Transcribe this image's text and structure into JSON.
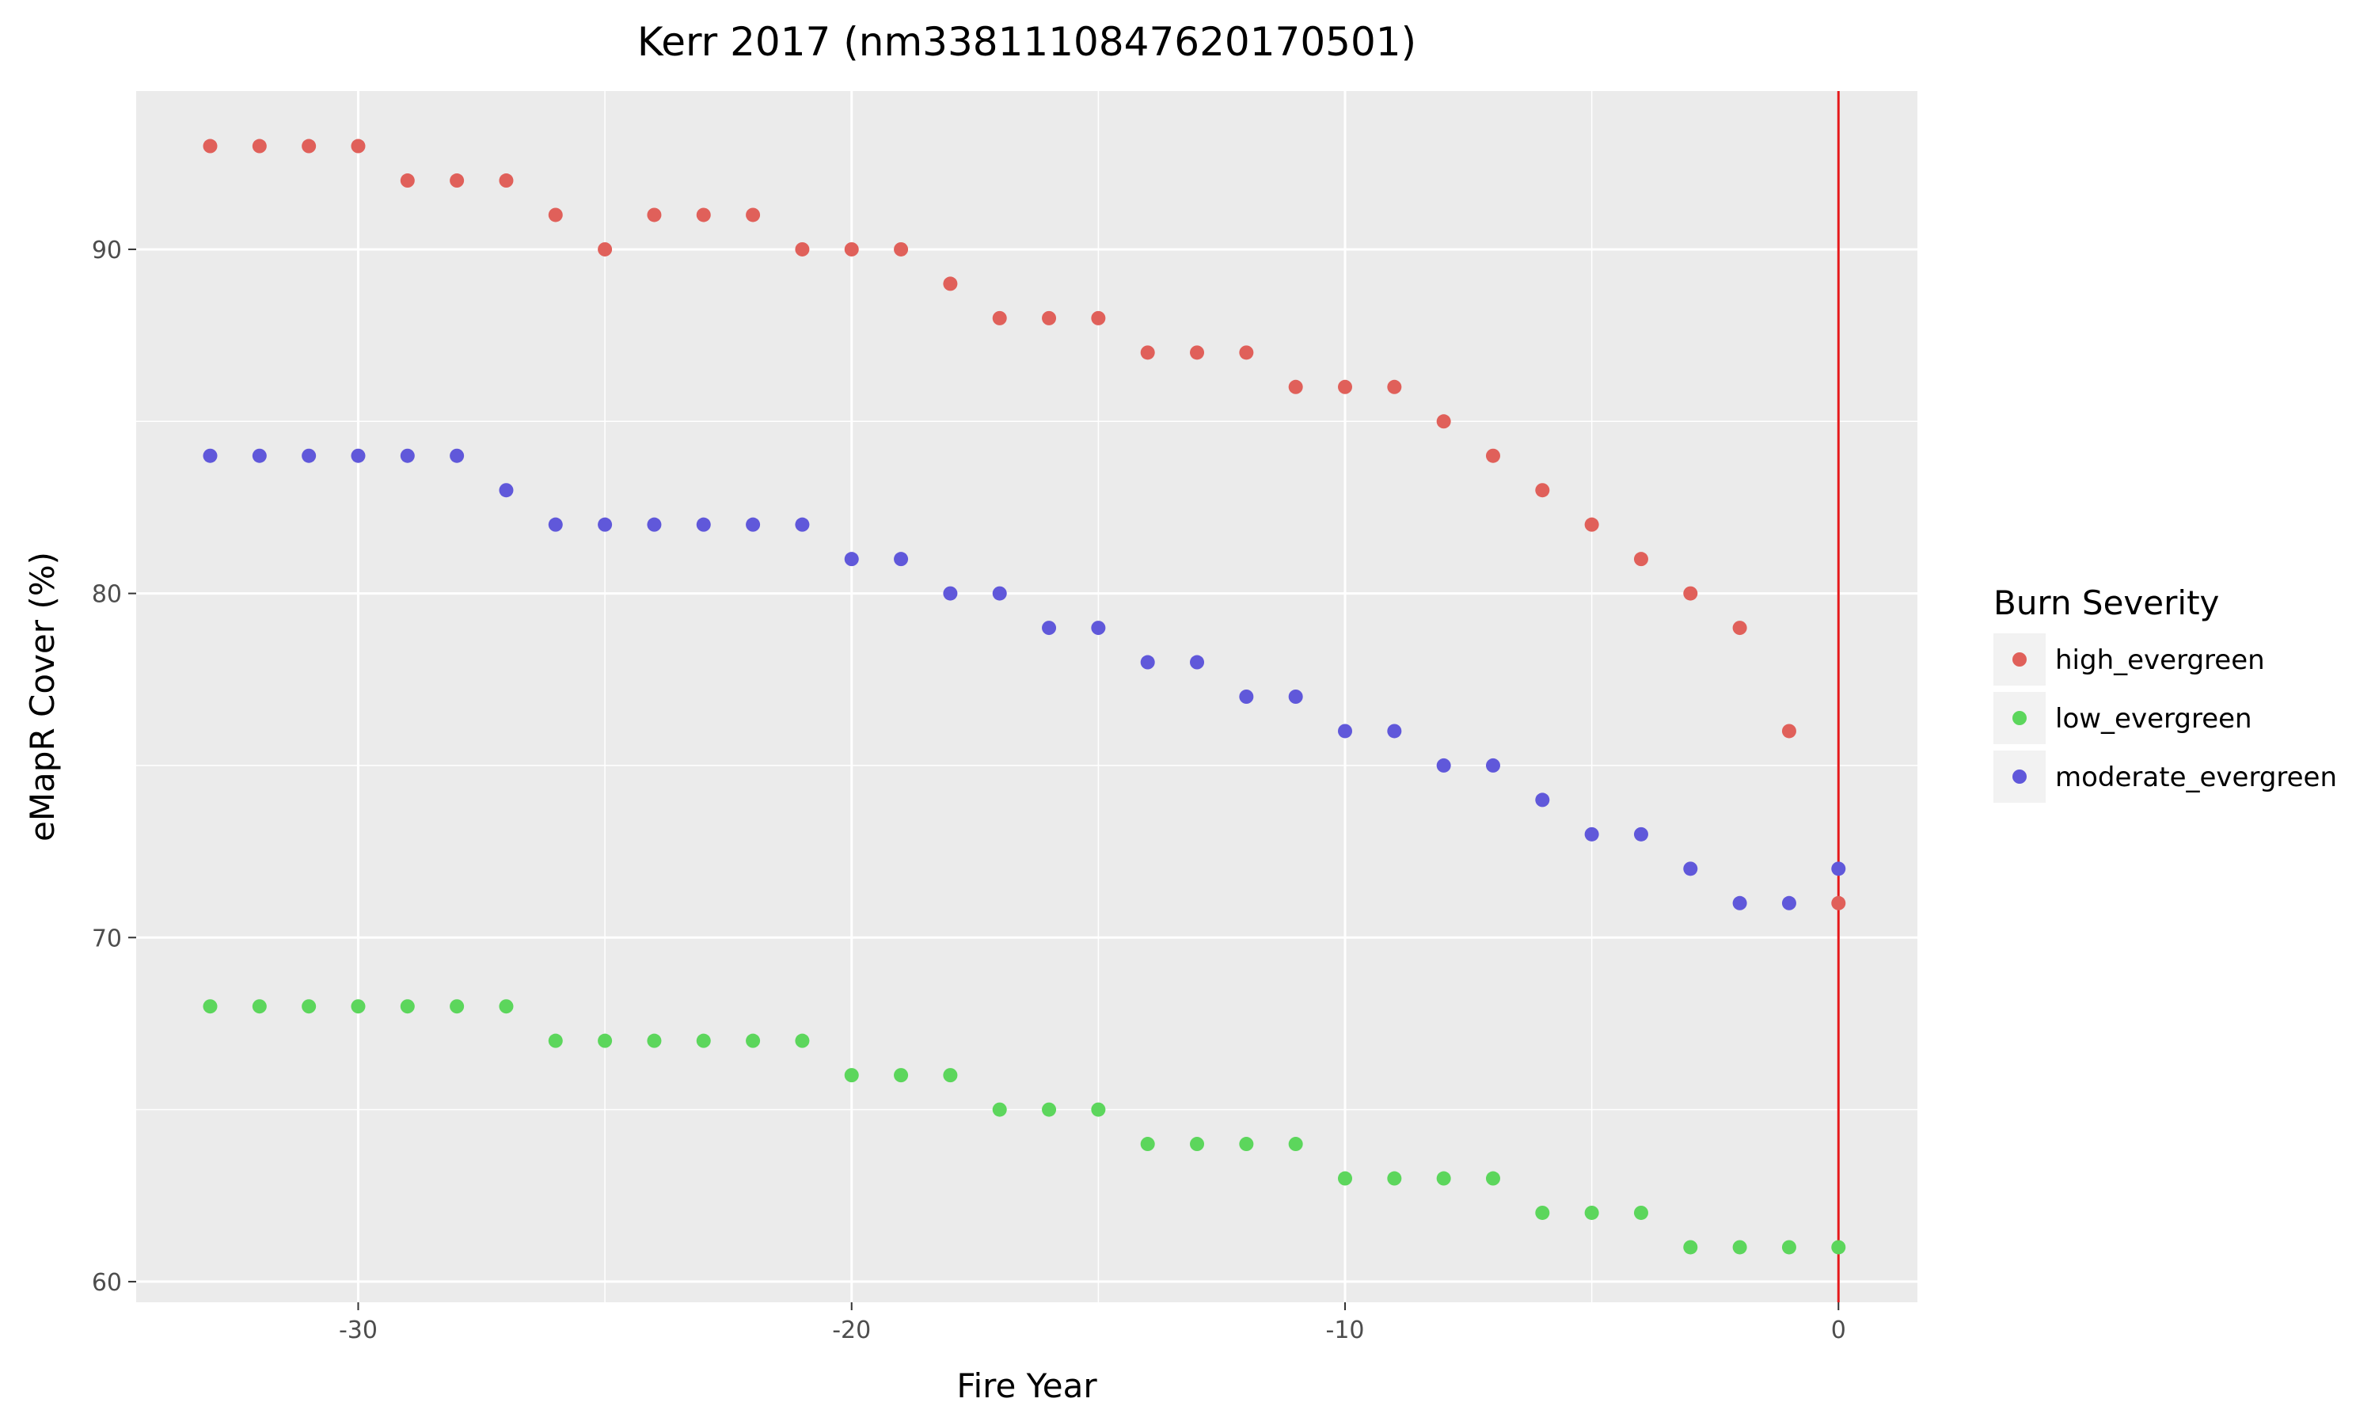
{
  "chart_data": {
    "type": "scatter",
    "title": "Kerr 2017 (nm3381110847620170501)",
    "xlabel": "Fire Year",
    "ylabel": "eMapR Cover (%)",
    "xlim": [
      -34.5,
      1.6
    ],
    "ylim": [
      59.4,
      94.6
    ],
    "x_ticks": [
      -30,
      -20,
      -10,
      0
    ],
    "y_ticks": [
      60,
      70,
      80,
      90
    ],
    "x_tick_labels": [
      "-30",
      "-20",
      "-10",
      "0"
    ],
    "y_tick_labels": [
      "60",
      "70",
      "80",
      "90"
    ],
    "grid": true,
    "background": "#ebebeb",
    "legend": {
      "title": "Burn Severity",
      "position": "right"
    },
    "reference_line": {
      "x": 0,
      "color": "#e41a1c"
    },
    "series": [
      {
        "name": "high_evergreen",
        "color": "#e0605a",
        "x": [
          -33,
          -32,
          -31,
          -30,
          -29,
          -28,
          -27,
          -26,
          -25,
          -24,
          -23,
          -22,
          -21,
          -20,
          -19,
          -18,
          -17,
          -16,
          -15,
          -14,
          -13,
          -12,
          -11,
          -10,
          -9,
          -8,
          -7,
          -6,
          -5,
          -4,
          -3,
          -2,
          -1,
          0
        ],
        "y": [
          93,
          93,
          93,
          93,
          92,
          92,
          92,
          91,
          90,
          91,
          91,
          91,
          90,
          90,
          90,
          89,
          88,
          88,
          88,
          87,
          87,
          87,
          86,
          86,
          86,
          85,
          84,
          83,
          82,
          81,
          80,
          79,
          76,
          71
        ]
      },
      {
        "name": "low_evergreen",
        "color": "#5cd65c",
        "x": [
          -33,
          -32,
          -31,
          -30,
          -29,
          -28,
          -27,
          -26,
          -25,
          -24,
          -23,
          -22,
          -21,
          -20,
          -19,
          -18,
          -17,
          -16,
          -15,
          -14,
          -13,
          -12,
          -11,
          -10,
          -9,
          -8,
          -7,
          -6,
          -5,
          -4,
          -3,
          -2,
          -1,
          0
        ],
        "y": [
          68,
          68,
          68,
          68,
          68,
          68,
          68,
          67,
          67,
          67,
          67,
          67,
          67,
          66,
          66,
          66,
          65,
          65,
          65,
          64,
          64,
          64,
          64,
          63,
          63,
          63,
          63,
          62,
          62,
          62,
          61,
          61,
          61,
          61
        ]
      },
      {
        "name": "moderate_evergreen",
        "color": "#6058da",
        "x": [
          -33,
          -32,
          -31,
          -30,
          -29,
          -28,
          -27,
          -26,
          -25,
          -24,
          -23,
          -22,
          -21,
          -20,
          -19,
          -18,
          -17,
          -16,
          -15,
          -14,
          -13,
          -12,
          -11,
          -10,
          -9,
          -8,
          -7,
          -6,
          -5,
          -4,
          -3,
          -2,
          -1,
          0
        ],
        "y": [
          84,
          84,
          84,
          84,
          84,
          84,
          83,
          82,
          82,
          82,
          82,
          82,
          82,
          81,
          81,
          80,
          80,
          79,
          79,
          78,
          78,
          77,
          77,
          76,
          76,
          75,
          75,
          74,
          73,
          73,
          72,
          71,
          71,
          72
        ]
      }
    ]
  }
}
